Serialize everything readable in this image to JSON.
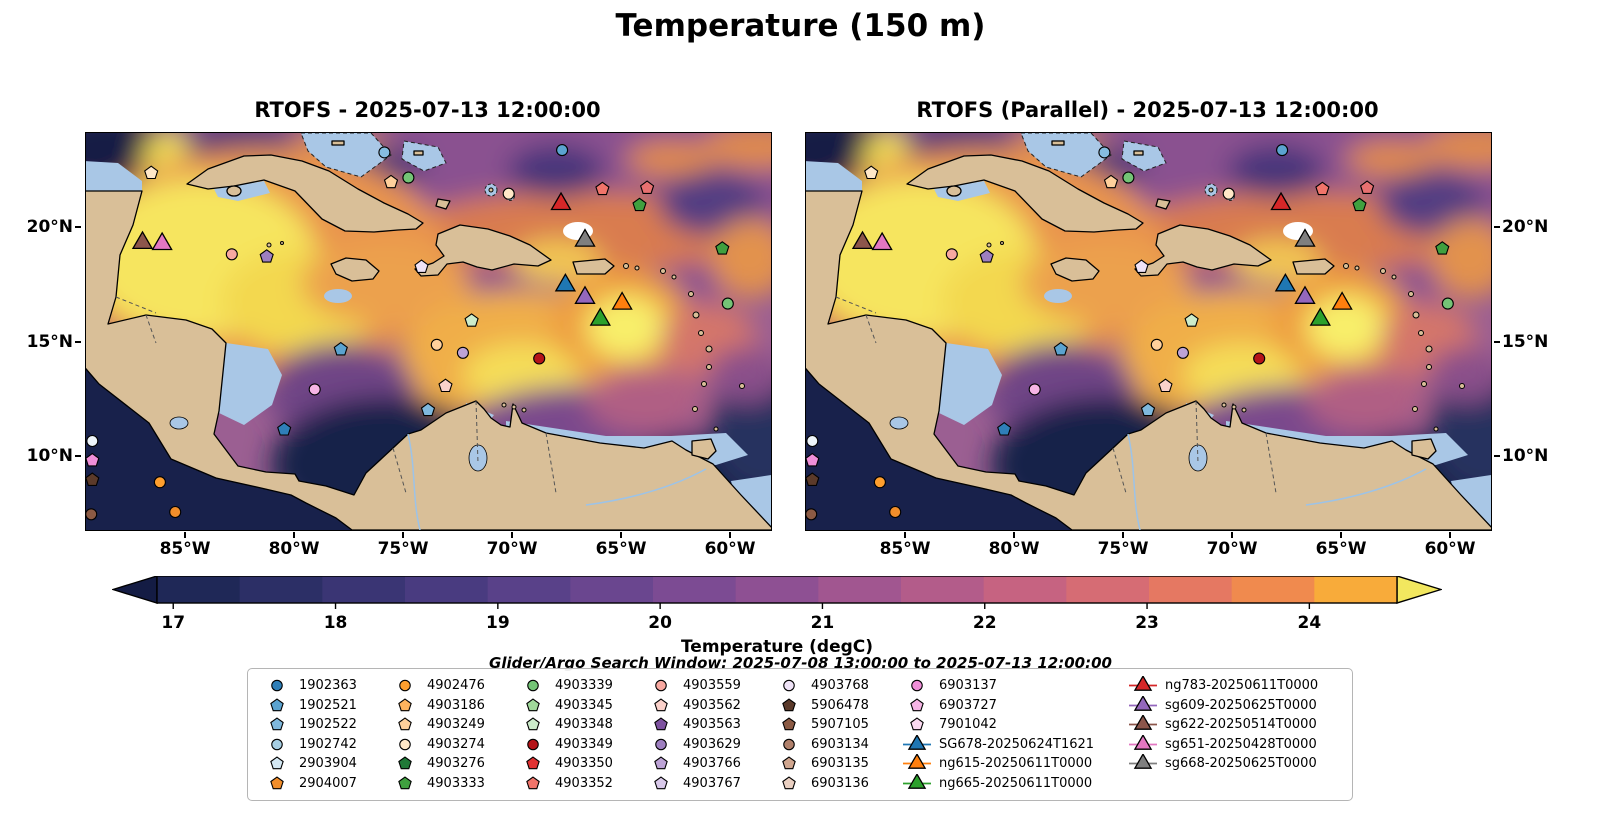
{
  "title": "Temperature (150 m)",
  "panels": [
    {
      "title": "RTOFS - 2025-07-13 12:00:00",
      "y_axis_side": "left"
    },
    {
      "title": "RTOFS (Parallel) - 2025-07-13 12:00:00",
      "y_axis_side": "right"
    }
  ],
  "x_ticks": [
    {
      "label": "85°W",
      "lon": 85
    },
    {
      "label": "80°W",
      "lon": 80
    },
    {
      "label": "75°W",
      "lon": 75
    },
    {
      "label": "70°W",
      "lon": 70
    },
    {
      "label": "65°W",
      "lon": 65
    },
    {
      "label": "60°W",
      "lon": 60
    }
  ],
  "y_ticks": [
    {
      "label": "20°N",
      "lat": 20
    },
    {
      "label": "15°N",
      "lat": 15
    },
    {
      "label": "10°N",
      "lat": 10
    }
  ],
  "colorbar": {
    "label": "Temperature (degC)",
    "ticks": [
      17,
      18,
      19,
      20,
      21,
      22,
      23,
      24
    ],
    "vmin": 16.9,
    "vmax": 24.54,
    "under_color": "#141c44",
    "over_color": "#f2e75f",
    "segment_colors": [
      "#1f2857",
      "#2c2f66",
      "#3a3574",
      "#493b80",
      "#594189",
      "#6a468f",
      "#7c4b93",
      "#8e5093",
      "#a15690",
      "#b35c8a",
      "#c66381",
      "#d66c74",
      "#e57862",
      "#f08a4e",
      "#f8ab3a"
    ]
  },
  "search_window": "Glider/Argo Search Window: 2025-07-08 13:00:00 to 2025-07-13 12:00:00",
  "colors": {
    "land": "#d9bf98",
    "shallow_water": "#a9c7e6",
    "ocean_base": "#9b5f92",
    "cold_deep": "#17204a",
    "warm_peak": "#f6e55e"
  },
  "legend": {
    "columns": [
      [
        {
          "label": "1902363",
          "shape": "circle",
          "color": "#2f7fb8"
        },
        {
          "label": "1902521",
          "shape": "pentagon",
          "color": "#5ba3d0"
        },
        {
          "label": "1902522",
          "shape": "pentagon",
          "color": "#7fb8dd"
        },
        {
          "label": "1902742",
          "shape": "circle",
          "color": "#a6cee3"
        },
        {
          "label": "2903904",
          "shape": "pentagon",
          "color": "#d4e8f4"
        },
        {
          "label": "2904007",
          "shape": "pentagon",
          "color": "#f28e2b"
        }
      ],
      [
        {
          "label": "4902476",
          "shape": "circle",
          "color": "#ff9f2e"
        },
        {
          "label": "4903186",
          "shape": "pentagon",
          "color": "#ffb45e"
        },
        {
          "label": "4903249",
          "shape": "pentagon",
          "color": "#ffd09b"
        },
        {
          "label": "4903274",
          "shape": "circle",
          "color": "#ffe8c8"
        },
        {
          "label": "4903276",
          "shape": "pentagon",
          "color": "#207a38"
        },
        {
          "label": "4903333",
          "shape": "pentagon",
          "color": "#3fa03f"
        }
      ],
      [
        {
          "label": "4903339",
          "shape": "circle",
          "color": "#74c476"
        },
        {
          "label": "4903345",
          "shape": "pentagon",
          "color": "#a1d99b"
        },
        {
          "label": "4903348",
          "shape": "pentagon",
          "color": "#cdeccb"
        },
        {
          "label": "4903349",
          "shape": "circle",
          "color": "#b51318"
        },
        {
          "label": "4903350",
          "shape": "pentagon",
          "color": "#e03131"
        },
        {
          "label": "4903352",
          "shape": "pentagon",
          "color": "#f0746a"
        }
      ],
      [
        {
          "label": "4903559",
          "shape": "circle",
          "color": "#f8a8a0"
        },
        {
          "label": "4903562",
          "shape": "pentagon",
          "color": "#fbd1ca"
        },
        {
          "label": "4903563",
          "shape": "pentagon",
          "color": "#7e52a0"
        },
        {
          "label": "4903629",
          "shape": "circle",
          "color": "#9e7fc0"
        },
        {
          "label": "4903766",
          "shape": "pentagon",
          "color": "#bda3d6"
        },
        {
          "label": "4903767",
          "shape": "pentagon",
          "color": "#d9c9ea"
        }
      ],
      [
        {
          "label": "4903768",
          "shape": "circle",
          "color": "#efe3f7"
        },
        {
          "label": "5906478",
          "shape": "pentagon",
          "color": "#5b3a2a"
        },
        {
          "label": "5907105",
          "shape": "pentagon",
          "color": "#8b5a44"
        },
        {
          "label": "6903134",
          "shape": "circle",
          "color": "#b0806b"
        },
        {
          "label": "6903135",
          "shape": "pentagon",
          "color": "#d0a68f"
        },
        {
          "label": "6903136",
          "shape": "pentagon",
          "color": "#ead0c2"
        }
      ],
      [
        {
          "label": "6903137",
          "shape": "circle",
          "color": "#f08fd8"
        },
        {
          "label": "6903727",
          "shape": "pentagon",
          "color": "#f6b5e5"
        },
        {
          "label": "7901042",
          "shape": "pentagon",
          "color": "#fbdaf1"
        },
        {
          "label": "SG678-20250624T1621",
          "shape": "triangle",
          "color": "#1f77b4"
        },
        {
          "label": "ng615-20250611T0000",
          "shape": "triangle",
          "color": "#ff7f0e"
        },
        {
          "label": "ng665-20250611T0000",
          "shape": "triangle",
          "color": "#2ca02c"
        }
      ],
      [
        {
          "label": "ng783-20250611T0000",
          "shape": "triangle",
          "color": "#d62728"
        },
        {
          "label": "sg609-20250625T0000",
          "shape": "triangle",
          "color": "#9467bd"
        },
        {
          "label": "sg622-20250514T0000",
          "shape": "triangle",
          "color": "#8c564b"
        },
        {
          "label": "sg651-20250428T0000",
          "shape": "triangle",
          "color": "#e377c2"
        },
        {
          "label": "sg668-20250625T0000",
          "shape": "triangle",
          "color": "#7f7f7f"
        }
      ]
    ]
  },
  "map_markers": [
    {
      "lon": 86.6,
      "lat": 22.4,
      "shape": "pentagon",
      "color": "#ffe8c8"
    },
    {
      "lon": 75.9,
      "lat": 23.3,
      "shape": "circle",
      "color": "#86bde0"
    },
    {
      "lon": 75.6,
      "lat": 22.0,
      "shape": "pentagon",
      "color": "#ffd09b"
    },
    {
      "lon": 74.8,
      "lat": 22.2,
      "shape": "circle",
      "color": "#74c476"
    },
    {
      "lon": 70.2,
      "lat": 21.5,
      "shape": "circle",
      "color": "#ffe8c8"
    },
    {
      "lon": 67.75,
      "lat": 23.4,
      "shape": "circle",
      "color": "#5ba3d0"
    },
    {
      "lon": 65.9,
      "lat": 21.7,
      "shape": "pentagon",
      "color": "#f0746a"
    },
    {
      "lon": 63.85,
      "lat": 21.75,
      "shape": "pentagon",
      "color": "#e87070"
    },
    {
      "lon": 64.2,
      "lat": 21.0,
      "shape": "pentagon",
      "color": "#3fa03f"
    },
    {
      "lon": 67.8,
      "lat": 21.05,
      "shape": "triangle",
      "color": "#d62728"
    },
    {
      "lon": 66.7,
      "lat": 19.45,
      "shape": "triangle",
      "color": "#7f7f7f"
    },
    {
      "lon": 87.0,
      "lat": 19.35,
      "shape": "triangle",
      "color": "#8c564b"
    },
    {
      "lon": 86.1,
      "lat": 19.3,
      "shape": "triangle",
      "color": "#e377c2"
    },
    {
      "lon": 82.9,
      "lat": 18.85,
      "shape": "circle",
      "color": "#f8a8a0"
    },
    {
      "lon": 81.3,
      "lat": 18.75,
      "shape": "pentagon",
      "color": "#9e7fc0"
    },
    {
      "lon": 74.2,
      "lat": 18.3,
      "shape": "pentagon",
      "color": "#efe3f7"
    },
    {
      "lon": 67.6,
      "lat": 17.5,
      "shape": "triangle",
      "color": "#1f77b4"
    },
    {
      "lon": 66.7,
      "lat": 16.95,
      "shape": "triangle",
      "color": "#9467bd"
    },
    {
      "lon": 65.0,
      "lat": 16.7,
      "shape": "triangle",
      "color": "#ff7f0e"
    },
    {
      "lon": 66.0,
      "lat": 16.0,
      "shape": "triangle",
      "color": "#2ca02c"
    },
    {
      "lon": 60.4,
      "lat": 19.1,
      "shape": "pentagon",
      "color": "#3fa03f"
    },
    {
      "lon": 60.15,
      "lat": 16.7,
      "shape": "circle",
      "color": "#74c476"
    },
    {
      "lon": 71.9,
      "lat": 15.95,
      "shape": "pentagon",
      "color": "#cdeccb"
    },
    {
      "lon": 77.9,
      "lat": 14.7,
      "shape": "pentagon",
      "color": "#5ba3d0"
    },
    {
      "lon": 73.5,
      "lat": 14.9,
      "shape": "circle",
      "color": "#ffd09b"
    },
    {
      "lon": 72.3,
      "lat": 14.55,
      "shape": "circle",
      "color": "#bda3d6"
    },
    {
      "lon": 68.8,
      "lat": 14.3,
      "shape": "circle",
      "color": "#b51318"
    },
    {
      "lon": 73.1,
      "lat": 13.1,
      "shape": "pentagon",
      "color": "#fbd1ca"
    },
    {
      "lon": 79.1,
      "lat": 12.95,
      "shape": "circle",
      "color": "#f6b5e5"
    },
    {
      "lon": 80.5,
      "lat": 11.2,
      "shape": "pentagon",
      "color": "#2f7fb8"
    },
    {
      "lon": 73.9,
      "lat": 12.05,
      "shape": "pentagon",
      "color": "#7fb8dd"
    },
    {
      "lon": 89.3,
      "lat": 10.7,
      "shape": "circle",
      "color": "#eef5fb"
    },
    {
      "lon": 89.3,
      "lat": 9.85,
      "shape": "pentagon",
      "color": "#f08fd8"
    },
    {
      "lon": 89.3,
      "lat": 9.0,
      "shape": "pentagon",
      "color": "#5b3a2a"
    },
    {
      "lon": 86.2,
      "lat": 8.9,
      "shape": "circle",
      "color": "#ff9f2e"
    },
    {
      "lon": 89.35,
      "lat": 7.5,
      "shape": "circle",
      "color": "#8b5a44"
    },
    {
      "lon": 85.5,
      "lat": 7.6,
      "shape": "circle",
      "color": "#f28e2b"
    }
  ],
  "chart_data": {
    "type": "heatmap",
    "title": "Temperature (150 m)",
    "variable": "Temperature",
    "depth_m": 150,
    "units": "degC",
    "panels": [
      "RTOFS - 2025-07-13 12:00:00",
      "RTOFS (Parallel) - 2025-07-13 12:00:00"
    ],
    "x_axis": {
      "tick_labels": [
        "85°W",
        "80°W",
        "75°W",
        "70°W",
        "65°W",
        "60°W"
      ],
      "range_deg_west": [
        89.6,
        58.2
      ]
    },
    "y_axis": {
      "tick_labels": [
        "20°N",
        "15°N",
        "10°N"
      ],
      "range_deg_north": [
        6.8,
        24.1
      ]
    },
    "colorbar": {
      "label": "Temperature (degC)",
      "ticks": [
        17,
        18,
        19,
        20,
        21,
        22,
        23,
        24
      ],
      "extend": "both"
    },
    "annotation": "Glider/Argo Search Window: 2025-07-08 13:00:00 to 2025-07-13 12:00:00",
    "platforms": {
      "argo_floats": [
        "1902363",
        "1902521",
        "1902522",
        "1902742",
        "2903904",
        "2904007",
        "4902476",
        "4903186",
        "4903249",
        "4903274",
        "4903276",
        "4903333",
        "4903339",
        "4903345",
        "4903348",
        "4903349",
        "4903350",
        "4903352",
        "4903559",
        "4903562",
        "4903563",
        "4903629",
        "4903766",
        "4903767",
        "4903768",
        "5906478",
        "5907105",
        "6903134",
        "6903135",
        "6903136",
        "6903137",
        "6903727",
        "7901042"
      ],
      "gliders": [
        "SG678-20250624T1621",
        "ng615-20250611T0000",
        "ng665-20250611T0000",
        "ng783-20250611T0000",
        "sg609-20250625T0000",
        "sg622-20250514T0000",
        "sg651-20250428T0000",
        "sg668-20250625T0000"
      ]
    }
  }
}
